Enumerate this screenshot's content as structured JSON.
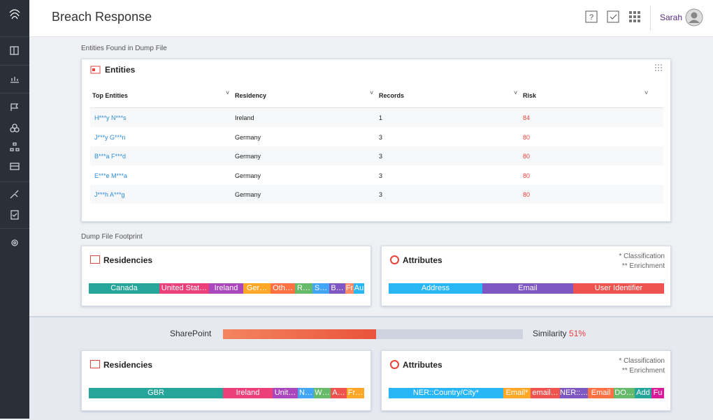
{
  "header": {
    "title": "Breach Response",
    "user": "Sarah"
  },
  "entities_section": {
    "caption": "Entities Found in Dump File",
    "card_title": "Entities",
    "columns": [
      "Top Entities",
      "Residency",
      "Records",
      "Risk"
    ],
    "rows": [
      [
        "H***y N***s",
        "Ireland",
        1,
        84
      ],
      [
        "J***y G***n",
        "Germany",
        3,
        80
      ],
      [
        "B***a F***d",
        "Germany",
        3,
        80
      ],
      [
        "E***e M***a",
        "Germany",
        3,
        80
      ],
      [
        "J***h A***g",
        "Germany",
        3,
        80
      ]
    ]
  },
  "footprint": {
    "caption": "Dump File Footprint",
    "residencies": {
      "title": "Residencies",
      "segments": [
        "Canada",
        "United Stat…",
        "Ireland",
        "Ger…",
        "Oth…",
        "R…",
        "S…",
        "B…",
        "Fr",
        "Au"
      ]
    },
    "attributes": {
      "title": "Attributes",
      "notes": [
        "* Classification",
        "** Enrichment"
      ],
      "segments": [
        "Address",
        "Email",
        "User Identifier"
      ]
    }
  },
  "comparison": {
    "source": "SharePoint",
    "similarity_label": "Similarity",
    "similarity_value": "51%",
    "residencies": {
      "title": "Residencies",
      "segments": [
        "GBR",
        "Ireland",
        "Unit…",
        "N…",
        "W…",
        "A…",
        "Fr…"
      ]
    },
    "attributes": {
      "title": "Attributes",
      "notes": [
        "* Classification",
        "** Enrichment"
      ],
      "segments": [
        "NER::Country/City*",
        "Email*",
        "email…",
        "NER::…",
        "Email",
        "DO…",
        "Add",
        "Fu"
      ]
    }
  }
}
